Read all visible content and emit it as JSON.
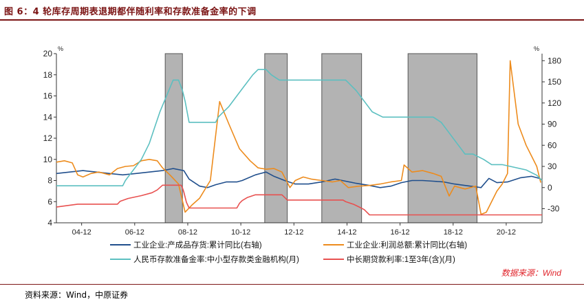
{
  "figure": {
    "title": "图 6：4 轮库存周期表退期都伴随利率和存款准备金率的下调",
    "source": "资料来源：Wind，中原证券",
    "watermark": "数据来源：Wind"
  },
  "chart_data": {
    "type": "line",
    "left_axis": {
      "unit": "%",
      "ticks": [
        4,
        6,
        8,
        10,
        12,
        14,
        16,
        18,
        20
      ],
      "range": [
        4,
        20
      ]
    },
    "right_axis": {
      "unit": "%",
      "ticks": [
        -30,
        0,
        30,
        60,
        90,
        120,
        150,
        180
      ],
      "range": [
        -50,
        190
      ]
    },
    "x_range": [
      2004.0,
      2022.3
    ],
    "x_ticks": [
      {
        "label": "04-12",
        "x": 2004.95
      },
      {
        "label": "06-12",
        "x": 2006.95
      },
      {
        "label": "08-12",
        "x": 2008.95
      },
      {
        "label": "10-12",
        "x": 2010.95
      },
      {
        "label": "12-12",
        "x": 2012.95
      },
      {
        "label": "14-12",
        "x": 2014.95
      },
      {
        "label": "16-12",
        "x": 2016.95
      },
      {
        "label": "18-12",
        "x": 2018.95
      },
      {
        "label": "20-12",
        "x": 2020.95
      }
    ],
    "shaded_periods": [
      [
        2008.1,
        2008.75
      ],
      [
        2011.85,
        2012.7
      ],
      [
        2014.0,
        2015.5
      ],
      [
        2017.25,
        2019.85
      ]
    ],
    "grid": false,
    "legend_position": "bottom",
    "series": [
      {
        "name": "工业企业:产成品存货:累计同比(右轴)",
        "axis": "right",
        "color": "#1f4e8c",
        "points": [
          [
            2004.0,
            20
          ],
          [
            2004.5,
            22
          ],
          [
            2005.0,
            24
          ],
          [
            2005.5,
            22
          ],
          [
            2006.0,
            20
          ],
          [
            2006.5,
            18
          ],
          [
            2007.0,
            20
          ],
          [
            2007.5,
            22
          ],
          [
            2008.0,
            24
          ],
          [
            2008.4,
            27
          ],
          [
            2008.8,
            24
          ],
          [
            2009.0,
            12
          ],
          [
            2009.4,
            2
          ],
          [
            2009.7,
            0
          ],
          [
            2010.0,
            4
          ],
          [
            2010.4,
            8
          ],
          [
            2010.8,
            8
          ],
          [
            2011.0,
            10
          ],
          [
            2011.5,
            18
          ],
          [
            2011.9,
            22
          ],
          [
            2012.2,
            16
          ],
          [
            2012.6,
            10
          ],
          [
            2013.0,
            5
          ],
          [
            2013.5,
            5
          ],
          [
            2014.0,
            8
          ],
          [
            2014.5,
            12
          ],
          [
            2014.9,
            9
          ],
          [
            2015.3,
            6
          ],
          [
            2015.8,
            3
          ],
          [
            2016.2,
            0
          ],
          [
            2016.6,
            2
          ],
          [
            2017.0,
            7
          ],
          [
            2017.4,
            10
          ],
          [
            2017.8,
            10
          ],
          [
            2018.2,
            9
          ],
          [
            2018.6,
            8
          ],
          [
            2019.0,
            5
          ],
          [
            2019.4,
            3
          ],
          [
            2019.8,
            1
          ],
          [
            2020.0,
            0
          ],
          [
            2020.3,
            13
          ],
          [
            2020.6,
            7
          ],
          [
            2021.0,
            8
          ],
          [
            2021.5,
            14
          ],
          [
            2021.9,
            16
          ],
          [
            2022.2,
            13
          ]
        ]
      },
      {
        "name": "工业企业:利润总额:累计同比(右轴)",
        "axis": "right",
        "color": "#ed8b1c",
        "points": [
          [
            2004.0,
            36
          ],
          [
            2004.3,
            38
          ],
          [
            2004.6,
            35
          ],
          [
            2004.8,
            18
          ],
          [
            2005.0,
            15
          ],
          [
            2005.3,
            20
          ],
          [
            2005.6,
            22
          ],
          [
            2006.0,
            18
          ],
          [
            2006.3,
            27
          ],
          [
            2006.6,
            30
          ],
          [
            2006.9,
            31
          ],
          [
            2007.2,
            38
          ],
          [
            2007.5,
            40
          ],
          [
            2007.8,
            38
          ],
          [
            2008.0,
            28
          ],
          [
            2008.3,
            17
          ],
          [
            2008.6,
            5
          ],
          [
            2008.85,
            -35
          ],
          [
            2009.1,
            -25
          ],
          [
            2009.4,
            -15
          ],
          [
            2009.8,
            10
          ],
          [
            2010.15,
            122
          ],
          [
            2010.5,
            90
          ],
          [
            2010.9,
            55
          ],
          [
            2011.3,
            38
          ],
          [
            2011.6,
            28
          ],
          [
            2011.9,
            26
          ],
          [
            2012.2,
            27
          ],
          [
            2012.5,
            22
          ],
          [
            2012.8,
            0
          ],
          [
            2013.0,
            10
          ],
          [
            2013.3,
            15
          ],
          [
            2013.6,
            12
          ],
          [
            2014.0,
            10
          ],
          [
            2014.4,
            8
          ],
          [
            2014.7,
            10
          ],
          [
            2015.0,
            0
          ],
          [
            2015.4,
            2
          ],
          [
            2015.8,
            3
          ],
          [
            2016.2,
            5
          ],
          [
            2016.6,
            8
          ],
          [
            2017.0,
            10
          ],
          [
            2017.1,
            32
          ],
          [
            2017.4,
            22
          ],
          [
            2017.8,
            24
          ],
          [
            2018.2,
            20
          ],
          [
            2018.5,
            16
          ],
          [
            2018.8,
            -12
          ],
          [
            2019.0,
            2
          ],
          [
            2019.4,
            -2
          ],
          [
            2019.8,
            2
          ],
          [
            2020.0,
            -38
          ],
          [
            2020.2,
            -35
          ],
          [
            2020.6,
            -5
          ],
          [
            2020.8,
            5
          ],
          [
            2021.0,
            20
          ],
          [
            2021.1,
            180
          ],
          [
            2021.4,
            90
          ],
          [
            2021.7,
            60
          ],
          [
            2021.9,
            45
          ],
          [
            2022.1,
            30
          ],
          [
            2022.25,
            7
          ]
        ]
      },
      {
        "name": "人民币存款准备金率:中小型存款类金融机构(月)",
        "axis": "left",
        "color": "#5bbfc0",
        "points": [
          [
            2004.0,
            7.5
          ],
          [
            2004.3,
            7.5
          ],
          [
            2006.5,
            7.5
          ],
          [
            2006.6,
            8.0
          ],
          [
            2006.9,
            9.0
          ],
          [
            2007.2,
            10.0
          ],
          [
            2007.5,
            11.5
          ],
          [
            2007.7,
            13.0
          ],
          [
            2007.9,
            14.5
          ],
          [
            2008.15,
            16.0
          ],
          [
            2008.4,
            17.5
          ],
          [
            2008.6,
            17.5
          ],
          [
            2008.75,
            16.5
          ],
          [
            2008.85,
            15.5
          ],
          [
            2009.0,
            13.5
          ],
          [
            2010.0,
            13.5
          ],
          [
            2010.1,
            14.0
          ],
          [
            2010.3,
            14.5
          ],
          [
            2010.5,
            15.0
          ],
          [
            2010.8,
            16.0
          ],
          [
            2011.1,
            17.0
          ],
          [
            2011.4,
            18.0
          ],
          [
            2011.6,
            18.5
          ],
          [
            2011.9,
            18.5
          ],
          [
            2012.1,
            18.0
          ],
          [
            2012.4,
            17.5
          ],
          [
            2012.6,
            17.5
          ],
          [
            2014.9,
            17.5
          ],
          [
            2015.3,
            16.5
          ],
          [
            2015.6,
            15.5
          ],
          [
            2015.9,
            14.5
          ],
          [
            2016.3,
            14.0
          ],
          [
            2018.2,
            14.0
          ],
          [
            2018.5,
            13.5
          ],
          [
            2018.8,
            12.5
          ],
          [
            2019.1,
            11.5
          ],
          [
            2019.4,
            10.5
          ],
          [
            2019.7,
            10.5
          ],
          [
            2020.1,
            10.0
          ],
          [
            2020.4,
            9.5
          ],
          [
            2020.8,
            9.5
          ],
          [
            2021.7,
            9.0
          ],
          [
            2022.1,
            8.5
          ],
          [
            2022.3,
            8.0
          ]
        ]
      },
      {
        "name": "中长期贷款利率:1至3年(含)(月)",
        "axis": "left",
        "color": "#e8504f",
        "points": [
          [
            2004.0,
            5.49
          ],
          [
            2004.8,
            5.76
          ],
          [
            2006.3,
            5.76
          ],
          [
            2006.4,
            6.03
          ],
          [
            2006.7,
            6.3
          ],
          [
            2007.2,
            6.57
          ],
          [
            2007.6,
            6.84
          ],
          [
            2007.8,
            7.11
          ],
          [
            2008.0,
            7.56
          ],
          [
            2008.7,
            7.56
          ],
          [
            2008.75,
            7.29
          ],
          [
            2008.8,
            6.93
          ],
          [
            2008.9,
            5.94
          ],
          [
            2009.0,
            5.4
          ],
          [
            2010.8,
            5.4
          ],
          [
            2010.9,
            5.85
          ],
          [
            2011.0,
            6.1
          ],
          [
            2011.2,
            6.4
          ],
          [
            2011.5,
            6.65
          ],
          [
            2012.5,
            6.65
          ],
          [
            2012.6,
            6.4
          ],
          [
            2012.7,
            6.15
          ],
          [
            2014.8,
            6.15
          ],
          [
            2014.9,
            6.0
          ],
          [
            2015.2,
            5.75
          ],
          [
            2015.4,
            5.5
          ],
          [
            2015.6,
            5.25
          ],
          [
            2015.8,
            4.75
          ],
          [
            2022.3,
            4.75
          ]
        ]
      }
    ]
  }
}
